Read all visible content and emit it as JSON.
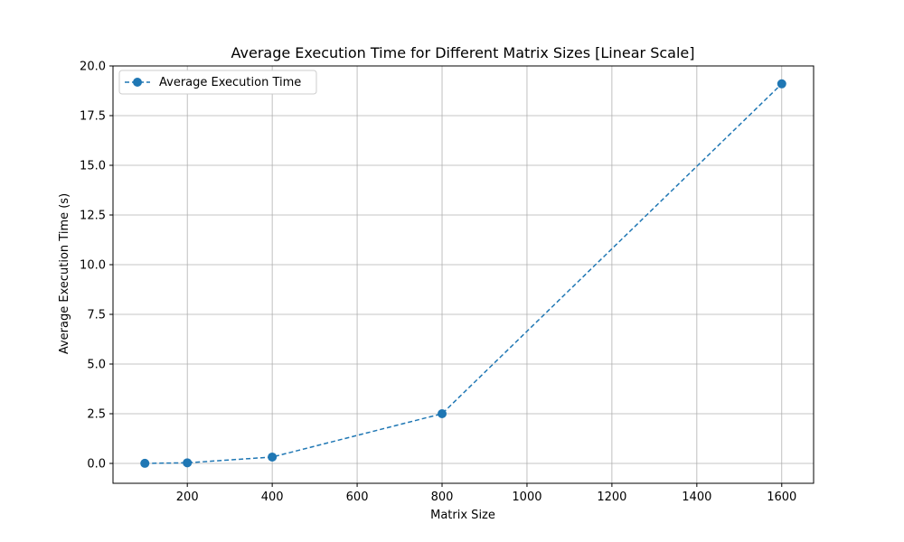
{
  "chart_data": {
    "type": "line",
    "title": "Average Execution Time for Different Matrix Sizes [Linear Scale]",
    "xlabel": "Matrix Size",
    "ylabel": "Average Execution Time (s)",
    "x": [
      100,
      200,
      400,
      800,
      1600
    ],
    "series": [
      {
        "name": "Average Execution Time",
        "values": [
          0.003,
          0.03,
          0.32,
          2.5,
          19.1
        ],
        "color": "#1f77b4",
        "line_style": "dashed",
        "marker": "circle"
      }
    ],
    "xlim": [
      25,
      1675
    ],
    "ylim": [
      -1.0,
      20.0
    ],
    "xticks": [
      200,
      400,
      600,
      800,
      1000,
      1200,
      1400,
      1600
    ],
    "xtick_labels": [
      "200",
      "400",
      "600",
      "800",
      "1000",
      "1200",
      "1400",
      "1600"
    ],
    "yticks": [
      0.0,
      2.5,
      5.0,
      7.5,
      10.0,
      12.5,
      15.0,
      17.5,
      20.0
    ],
    "ytick_labels": [
      "0.0",
      "2.5",
      "5.0",
      "7.5",
      "10.0",
      "12.5",
      "15.0",
      "17.5",
      "20.0"
    ],
    "grid": true,
    "legend_position": "top-left"
  }
}
